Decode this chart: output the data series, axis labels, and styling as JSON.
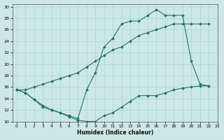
{
  "xlabel": "Humidex (Indice chaleur)",
  "bg_color": "#cce8e4",
  "grid_color": "#a8d4ce",
  "line_color": "#2a6e66",
  "xlim": [
    -0.5,
    23
  ],
  "ylim": [
    10,
    30.5
  ],
  "xticks": [
    0,
    1,
    2,
    3,
    4,
    5,
    6,
    7,
    8,
    9,
    10,
    11,
    12,
    13,
    14,
    15,
    16,
    17,
    18,
    19,
    20,
    21,
    22,
    23
  ],
  "yticks": [
    10,
    12,
    14,
    16,
    18,
    20,
    22,
    24,
    26,
    28,
    30
  ],
  "line1_x": [
    0,
    1,
    2,
    3,
    4,
    5,
    6,
    7,
    8,
    9,
    10,
    11,
    12,
    13,
    14,
    15,
    16,
    17,
    18,
    19,
    20,
    21,
    22
  ],
  "line1_y": [
    15.5,
    15.0,
    13.8,
    12.8,
    12.0,
    11.5,
    10.8,
    10.2,
    10.0,
    10.0,
    11.0,
    11.5,
    12.5,
    13.5,
    14.5,
    14.5,
    14.5,
    15.0,
    15.5,
    15.8,
    16.0,
    16.2,
    16.2
  ],
  "line2_x": [
    0,
    1,
    2,
    3,
    4,
    5,
    6,
    7,
    8,
    9,
    10,
    11,
    12,
    13,
    14,
    15,
    16,
    17,
    18,
    19,
    20,
    21,
    22
  ],
  "line2_y": [
    15.5,
    15.5,
    16.0,
    16.5,
    17.0,
    17.5,
    18.0,
    18.5,
    19.5,
    20.5,
    21.5,
    22.5,
    23.0,
    24.0,
    25.0,
    25.5,
    26.0,
    26.5,
    27.0,
    27.0,
    27.0,
    27.0,
    27.0
  ],
  "line3_x": [
    0,
    1,
    2,
    3,
    4,
    5,
    6,
    7,
    8,
    9,
    10,
    11,
    12,
    13,
    14,
    15,
    16,
    17,
    18,
    19,
    20,
    21,
    22
  ],
  "line3_y": [
    15.5,
    15.0,
    13.8,
    12.5,
    12.0,
    11.5,
    11.0,
    10.5,
    15.5,
    18.5,
    23.0,
    24.5,
    27.0,
    27.5,
    27.5,
    28.5,
    29.5,
    28.5,
    28.5,
    28.5,
    20.5,
    16.5,
    16.2
  ]
}
